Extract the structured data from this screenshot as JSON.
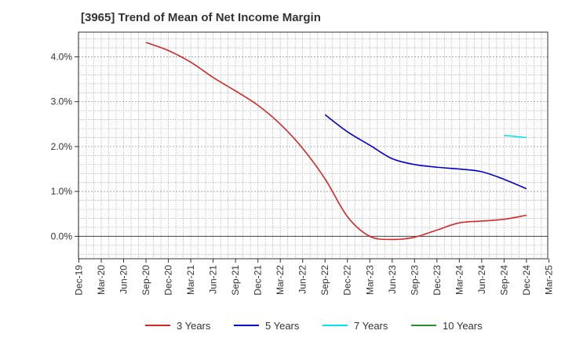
{
  "title": "[3965]  Trend of Mean of Net Income Margin",
  "chart_data": {
    "type": "line",
    "title": "[3965]  Trend of Mean of Net Income Margin",
    "x_categories": [
      "Dec-19",
      "Mar-20",
      "Jun-20",
      "Sep-20",
      "Dec-20",
      "Mar-21",
      "Jun-21",
      "Sep-21",
      "Dec-21",
      "Mar-22",
      "Jun-22",
      "Sep-22",
      "Dec-22",
      "Mar-23",
      "Jun-23",
      "Sep-23",
      "Dec-23",
      "Mar-24",
      "Jun-24",
      "Sep-24",
      "Dec-24",
      "Mar-25"
    ],
    "y_ticks": [
      0.0,
      1.0,
      2.0,
      3.0,
      4.0
    ],
    "y_tick_labels": [
      "0.0%",
      "1.0%",
      "2.0%",
      "3.0%",
      "4.0%"
    ],
    "ylim": [
      -0.5,
      4.55
    ],
    "grid": true,
    "legend_position": "bottom",
    "series": [
      {
        "name": "3 Years",
        "color": "#d62728",
        "x": [
          "Sep-20",
          "Dec-20",
          "Mar-21",
          "Jun-21",
          "Sep-21",
          "Dec-21",
          "Mar-22",
          "Jun-22",
          "Sep-22",
          "Dec-22",
          "Mar-23",
          "Jun-23",
          "Sep-23",
          "Dec-23",
          "Mar-24",
          "Jun-24",
          "Sep-24",
          "Dec-24"
        ],
        "values": [
          4.32,
          4.14,
          3.88,
          3.54,
          3.24,
          2.92,
          2.5,
          1.96,
          1.28,
          0.44,
          0.0,
          -0.07,
          -0.02,
          0.14,
          0.3,
          0.34,
          0.38,
          0.47
        ]
      },
      {
        "name": "5 Years",
        "color": "#0000cc",
        "x": [
          "Sep-22",
          "Dec-22",
          "Mar-23",
          "Jun-23",
          "Sep-23",
          "Dec-23",
          "Mar-24",
          "Jun-24",
          "Sep-24",
          "Dec-24"
        ],
        "values": [
          2.71,
          2.33,
          2.03,
          1.73,
          1.6,
          1.54,
          1.5,
          1.44,
          1.27,
          1.06
        ]
      },
      {
        "name": "7 Years",
        "color": "#00e5ee",
        "x": [
          "Sep-24",
          "Dec-24"
        ],
        "values": [
          2.25,
          2.2
        ]
      },
      {
        "name": "10 Years",
        "color": "#2e8b2e",
        "x": [],
        "values": []
      }
    ]
  }
}
